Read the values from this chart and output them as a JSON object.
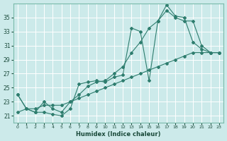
{
  "xlabel": "Humidex (Indice chaleur)",
  "bg_color": "#cceaea",
  "grid_color": "#ffffff",
  "line_color": "#2e7d6e",
  "xlim": [
    -0.5,
    23.5
  ],
  "ylim": [
    20.0,
    37.0
  ],
  "xticks": [
    0,
    1,
    2,
    3,
    4,
    5,
    6,
    7,
    8,
    9,
    10,
    11,
    12,
    13,
    14,
    15,
    16,
    17,
    18,
    19,
    20,
    21,
    22,
    23
  ],
  "yticks": [
    21,
    23,
    25,
    27,
    29,
    31,
    33,
    35
  ],
  "series1_x": [
    0,
    1,
    2,
    3,
    4,
    5,
    6,
    7,
    8,
    9,
    10,
    11,
    12,
    13,
    14,
    15,
    16,
    17,
    18,
    19,
    20,
    21,
    22,
    23
  ],
  "series1_y": [
    24.0,
    22.0,
    21.5,
    21.5,
    21.2,
    21.0,
    22.0,
    25.5,
    25.8,
    26.0,
    25.8,
    26.5,
    26.8,
    33.5,
    33.0,
    26.0,
    34.5,
    36.8,
    35.2,
    35.0,
    31.5,
    30.5,
    30.0,
    30.0
  ],
  "series2_x": [
    0,
    1,
    2,
    3,
    4,
    5,
    6,
    7,
    8,
    9,
    10,
    11,
    12,
    13,
    14,
    15,
    16,
    17,
    18,
    19,
    20,
    21,
    22,
    23
  ],
  "series2_y": [
    24.0,
    22.0,
    21.5,
    23.0,
    22.0,
    21.5,
    23.0,
    24.0,
    25.2,
    25.8,
    26.0,
    27.0,
    28.0,
    30.0,
    31.5,
    33.5,
    34.5,
    36.0,
    35.0,
    34.5,
    34.5,
    31.0,
    30.0,
    30.0
  ],
  "series3_x": [
    0,
    1,
    2,
    3,
    4,
    5,
    6,
    7,
    8,
    9,
    10,
    11,
    12,
    13,
    14,
    15,
    16,
    17,
    18,
    19,
    20,
    21,
    22,
    23
  ],
  "series3_y": [
    21.5,
    22.0,
    22.0,
    22.5,
    22.5,
    22.5,
    23.0,
    23.5,
    24.0,
    24.5,
    25.0,
    25.5,
    26.0,
    26.5,
    27.0,
    27.5,
    28.0,
    28.5,
    29.0,
    29.5,
    30.0,
    30.0,
    30.0,
    30.0
  ]
}
